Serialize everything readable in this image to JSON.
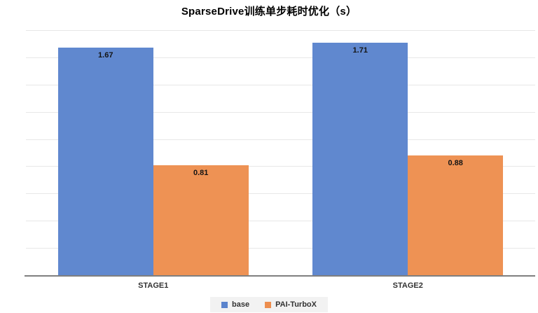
{
  "chart_data": {
    "type": "bar",
    "title": "SparseDrive训练单步耗时优化（s）",
    "categories": [
      "STAGE1",
      "STAGE2"
    ],
    "series": [
      {
        "name": "base",
        "color": "#5B84CD",
        "values": [
          1.67,
          1.71
        ],
        "labels": [
          "1.67",
          "1.71"
        ]
      },
      {
        "name": "PAI-TurboX",
        "color": "#ED8E4E",
        "values": [
          0.81,
          0.88
        ],
        "labels": [
          "0.81",
          "0.88"
        ]
      }
    ],
    "ylim": [
      0,
      1.8
    ],
    "gridline_step": 0.2,
    "grid": true,
    "y_axis_labels_visible": false,
    "legend_position": "bottom",
    "value_label_position": "inside-end",
    "colors": {
      "background": "#FFFFFF",
      "gridline": "#E7E7E7",
      "axis_line": "#7F7F7F",
      "title_text": "#000000",
      "category_text": "#333333",
      "value_label_text": "#141414",
      "legend_bg": "#F2F2F2",
      "legend_text": "#333333"
    }
  }
}
